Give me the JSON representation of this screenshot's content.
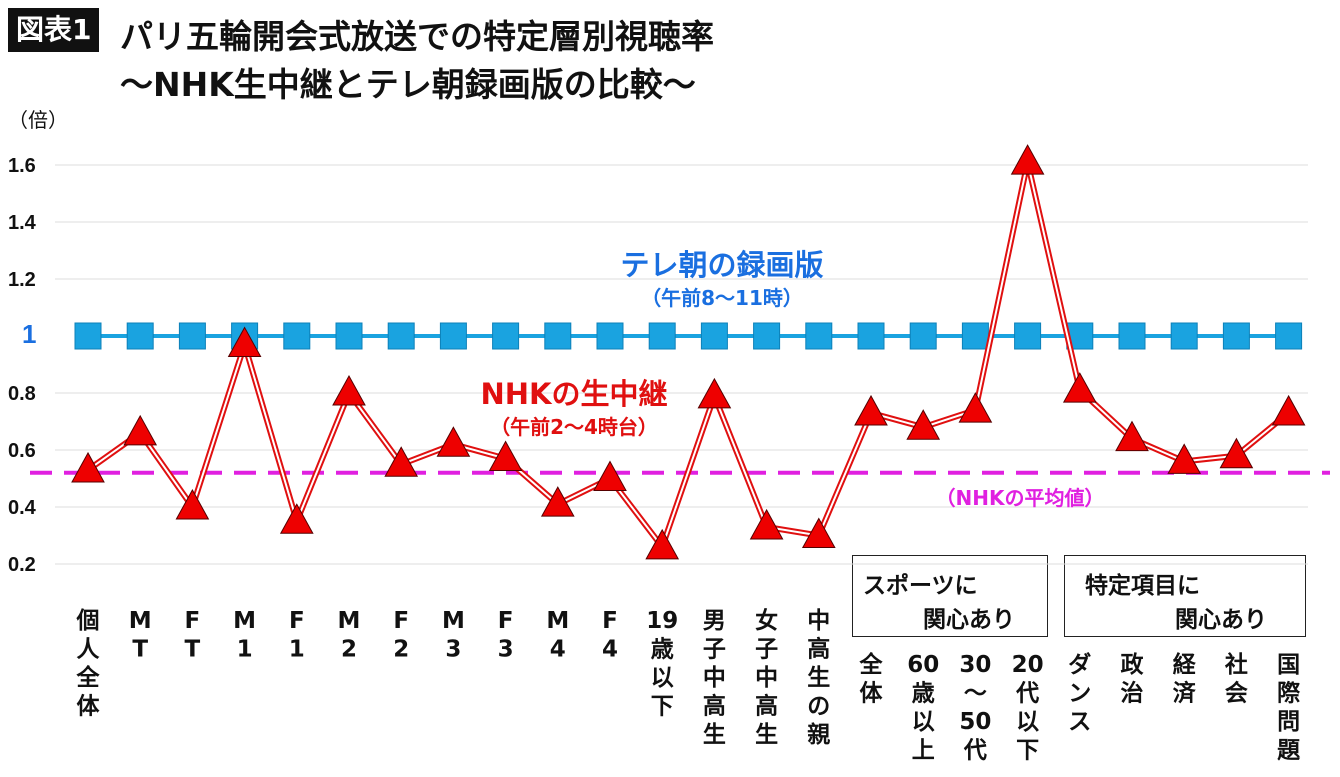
{
  "header": {
    "badge": "図表1",
    "title_line1": "パリ五輪開会式放送での特定層別視聴率",
    "title_line2": "〜NHK生中継とテレ朝録画版の比較〜"
  },
  "groups": {
    "sports": [
      "スポーツに",
      "関心あり"
    ],
    "topics": [
      "特定項目に",
      "関心あり"
    ]
  },
  "chart_data": {
    "type": "line",
    "unit_label": "（倍）",
    "ylim": [
      0.15,
      1.68
    ],
    "yticks": [
      {
        "value": 0.2,
        "label": "0.2"
      },
      {
        "value": 0.4,
        "label": "0.4"
      },
      {
        "value": 0.6,
        "label": "0.6"
      },
      {
        "value": 0.8,
        "label": "0.8"
      },
      {
        "value": 1.0,
        "label": "1"
      },
      {
        "value": 1.2,
        "label": "1.2"
      },
      {
        "value": 1.4,
        "label": "1.4"
      },
      {
        "value": 1.6,
        "label": "1.6"
      }
    ],
    "grid": true,
    "categories": [
      "個人全体",
      "MT",
      "FT",
      "M1",
      "F1",
      "M2",
      "F2",
      "M3",
      "F3",
      "M4",
      "F4",
      "19歳以下",
      "男子中高生",
      "女子中高生",
      "中高生の親",
      "全体",
      "60歳以上",
      "30〜50代",
      "20代以下",
      "ダンス",
      "政治",
      "経済",
      "社会",
      "国際問題"
    ],
    "category_lines": [
      [
        "個",
        "人",
        "全",
        "体"
      ],
      [
        "M",
        "T"
      ],
      [
        "F",
        "T"
      ],
      [
        "M",
        "1"
      ],
      [
        "F",
        "1"
      ],
      [
        "M",
        "2"
      ],
      [
        "F",
        "2"
      ],
      [
        "M",
        "3"
      ],
      [
        "F",
        "3"
      ],
      [
        "M",
        "4"
      ],
      [
        "F",
        "4"
      ],
      [
        "19",
        "歳",
        "以",
        "下"
      ],
      [
        "男",
        "子",
        "中",
        "高",
        "生"
      ],
      [
        "女",
        "子",
        "中",
        "高",
        "生"
      ],
      [
        "中",
        "高",
        "生",
        "の",
        "親"
      ],
      [
        "全",
        "体"
      ],
      [
        "60",
        "歳",
        "以",
        "上"
      ],
      [
        "30",
        "〜",
        "50",
        "代"
      ],
      [
        "20",
        "代",
        "以",
        "下"
      ],
      [
        "ダ",
        "ン",
        "ス"
      ],
      [
        "政",
        "治"
      ],
      [
        "経",
        "済"
      ],
      [
        "社",
        "会"
      ],
      [
        "国",
        "際",
        "問",
        "題"
      ]
    ],
    "series": [
      {
        "name": "テレ朝の録画版",
        "sublabel": "（午前8〜11時）",
        "color": "#1aa3e0",
        "label_color": "#1a6fe0",
        "marker": "square",
        "values": [
          1,
          1,
          1,
          1,
          1,
          1,
          1,
          1,
          1,
          1,
          1,
          1,
          1,
          1,
          1,
          1,
          1,
          1,
          1,
          1,
          1,
          1,
          1,
          1
        ]
      },
      {
        "name": "NHKの生中継",
        "sublabel": "（午前2〜4時台）",
        "color": "#e01010",
        "marker": "triangle",
        "values": [
          0.53,
          0.66,
          0.4,
          0.97,
          0.35,
          0.8,
          0.55,
          0.62,
          0.57,
          0.41,
          0.5,
          0.26,
          0.79,
          0.33,
          0.3,
          0.73,
          0.68,
          0.74,
          1.61,
          0.81,
          0.64,
          0.56,
          0.58,
          0.73
        ]
      }
    ],
    "reference_line": {
      "label": "（NHKの平均値）",
      "value": 0.52,
      "color": "#e020e0"
    }
  }
}
